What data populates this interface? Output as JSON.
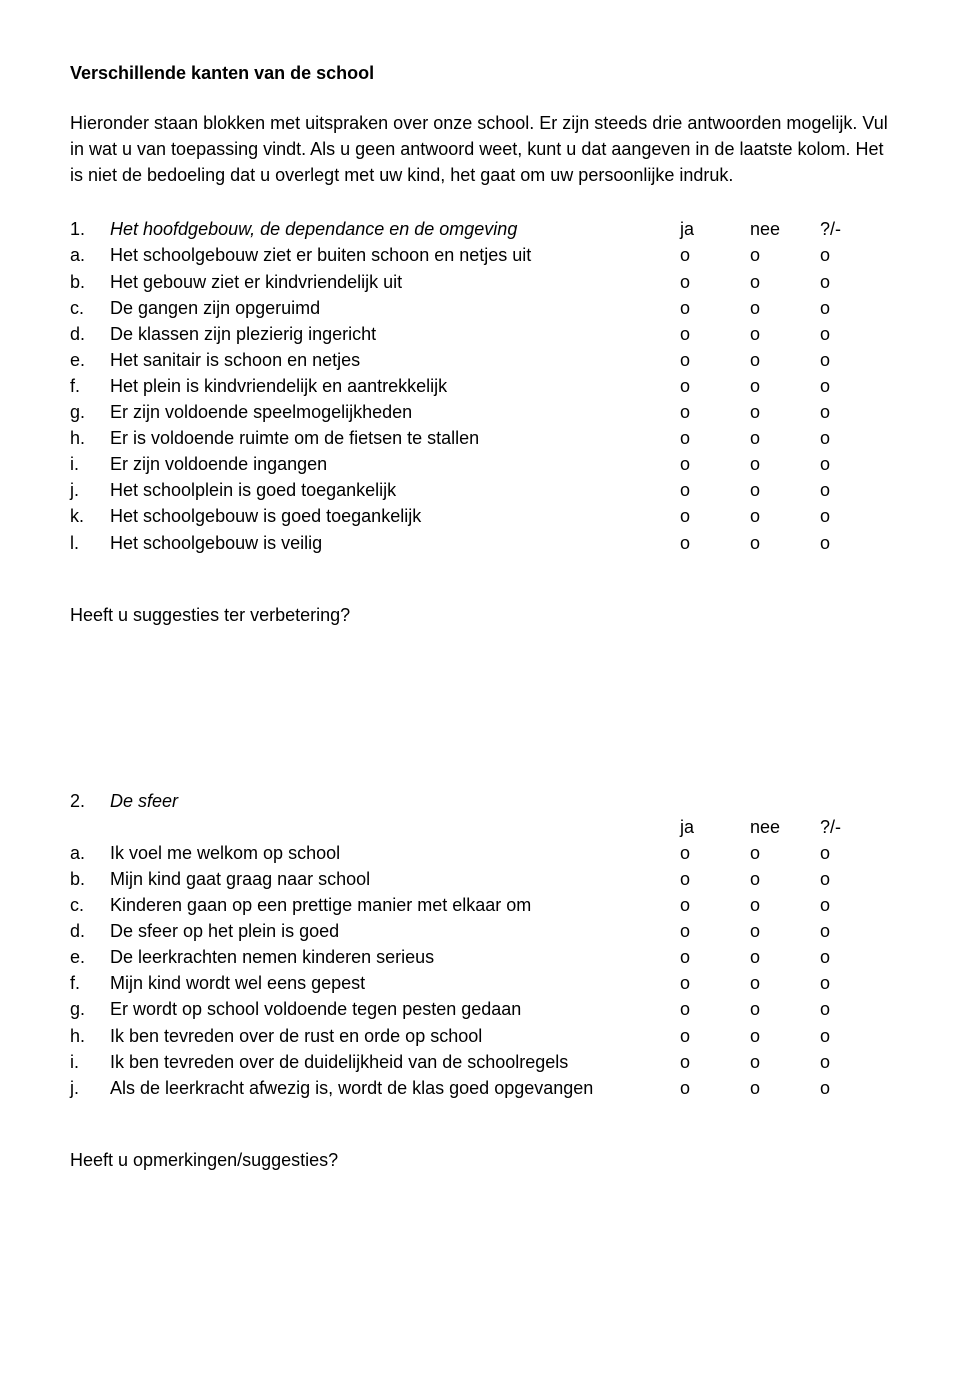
{
  "title": "Verschillende kanten van de school",
  "intro": "Hieronder staan blokken met uitspraken over onze school. Er zijn steeds drie antwoorden mogelijk. Vul in wat u van toepassing vindt. Als u geen antwoord weet, kunt u dat aangeven in de laatste kolom. Het is niet de bedoeling dat u overlegt met uw kind, het gaat om uw persoonlijke indruk.",
  "columns": {
    "ja": "ja",
    "nee": "nee",
    "unk": "?/-"
  },
  "mark": "o",
  "section1": {
    "number": "1.",
    "title": "Het hoofdgebouw, de dependance en de omgeving",
    "items": [
      {
        "letter": "a.",
        "text": "Het schoolgebouw ziet er buiten schoon en netjes uit"
      },
      {
        "letter": "b.",
        "text": "Het gebouw ziet er kindvriendelijk uit"
      },
      {
        "letter": "c.",
        "text": "De gangen zijn opgeruimd"
      },
      {
        "letter": "d.",
        "text": "De klassen zijn plezierig ingericht"
      },
      {
        "letter": "e.",
        "text": "Het sanitair is schoon en netjes"
      },
      {
        "letter": "f.",
        "text": "Het plein is kindvriendelijk en aantrekkelijk"
      },
      {
        "letter": "g.",
        "text": "Er zijn voldoende speelmogelijkheden"
      },
      {
        "letter": "h.",
        "text": "Er is voldoende ruimte om de fietsen te stallen"
      },
      {
        "letter": "i.",
        "text": "Er zijn voldoende ingangen"
      },
      {
        "letter": "j.",
        "text": "Het schoolplein is goed toegankelijk"
      },
      {
        "letter": "k.",
        "text": "Het schoolgebouw is goed toegankelijk"
      },
      {
        "letter": "l.",
        "text": "Het schoolgebouw is veilig"
      }
    ]
  },
  "suggest1": "Heeft u suggesties ter verbetering?",
  "section2": {
    "number": "2.",
    "title": "De sfeer",
    "items": [
      {
        "letter": "a.",
        "text": "Ik voel me welkom op school"
      },
      {
        "letter": "b.",
        "text": "Mijn kind gaat graag naar school"
      },
      {
        "letter": "c.",
        "text": "Kinderen gaan op een prettige manier met elkaar om"
      },
      {
        "letter": "d.",
        "text": "De sfeer op het plein is goed"
      },
      {
        "letter": "e.",
        "text": "De leerkrachten nemen kinderen serieus"
      },
      {
        "letter": "f.",
        "text": "Mijn kind wordt wel eens gepest"
      },
      {
        "letter": "g.",
        "text": "Er wordt op school voldoende tegen pesten gedaan"
      },
      {
        "letter": "h.",
        "text": "Ik ben tevreden over de rust en orde op school"
      },
      {
        "letter": "i.",
        "text": "Ik ben tevreden over de duidelijkheid van de schoolregels"
      },
      {
        "letter": "j.",
        "text": "Als de leerkracht afwezig is, wordt de klas goed opgevangen"
      }
    ]
  },
  "suggest2": "Heeft u opmerkingen/suggesties?"
}
